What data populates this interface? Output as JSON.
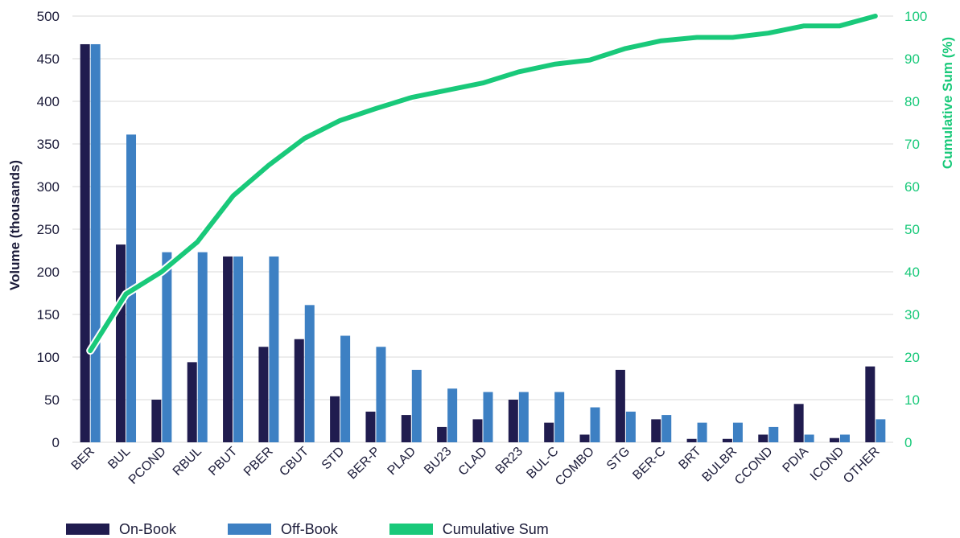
{
  "chart_data": {
    "type": "bar",
    "categories": [
      "BER",
      "BUL",
      "PCOND",
      "RBUL",
      "PBUT",
      "PBER",
      "CBUT",
      "STD",
      "BER-P",
      "PLAD",
      "BU23",
      "CLAD",
      "BR23",
      "BUL-C",
      "COMBO",
      "STG",
      "BER-C",
      "BRT",
      "BULBR",
      "CCOND",
      "PDIA",
      "ICOND",
      "OTHER"
    ],
    "series": [
      {
        "name": "On-Book",
        "type": "bar",
        "axis": "left",
        "color": "#201c4f",
        "values": [
          467,
          232,
          50,
          94,
          218,
          112,
          121,
          54,
          36,
          32,
          18,
          27,
          50,
          23,
          9,
          85,
          27,
          4,
          4,
          9,
          45,
          5,
          89
        ]
      },
      {
        "name": "Off-Book",
        "type": "bar",
        "axis": "left",
        "color": "#3d80c3",
        "values": [
          467,
          361,
          223,
          223,
          218,
          218,
          161,
          125,
          112,
          85,
          63,
          59,
          59,
          59,
          41,
          36,
          32,
          23,
          23,
          18,
          9,
          9,
          27
        ]
      },
      {
        "name": "Cumulative Sum",
        "type": "line",
        "axis": "right",
        "color": "#19c97a",
        "values": [
          21.5,
          34.8,
          40,
          47,
          57.8,
          65,
          71.3,
          75.5,
          78.3,
          80.9,
          82.6,
          84.3,
          86.9,
          88.7,
          89.7,
          92.4,
          94.2,
          95,
          95,
          96,
          97.7,
          97.7,
          100
        ]
      }
    ],
    "ylabel": "Volume (thousands)",
    "y2label": "Cumulative Sum (%)",
    "ylim": [
      0,
      500
    ],
    "y2lim": [
      0,
      100
    ],
    "yticks": [
      "0",
      "50",
      "100",
      "150",
      "200",
      "250",
      "300",
      "350",
      "400",
      "450",
      "500"
    ],
    "y2ticks": [
      "0",
      "10",
      "20",
      "30",
      "40",
      "50",
      "60",
      "70",
      "80",
      "90",
      "100"
    ],
    "grid": true,
    "legend_position": "bottom-left"
  },
  "legend": {
    "on_book": "On-Book",
    "off_book": "Off-Book",
    "cumulative": "Cumulative Sum"
  }
}
